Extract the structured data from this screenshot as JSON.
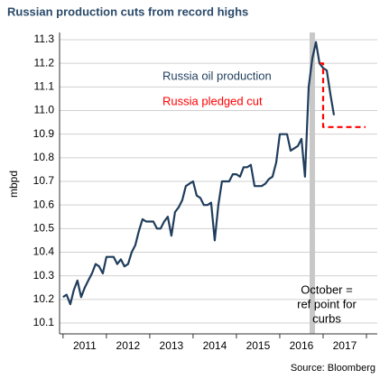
{
  "chart_data": {
    "type": "line",
    "title": "Russian production cuts from record highs",
    "ylabel": "mbpd",
    "source": "Source: Bloomberg",
    "xlim": [
      2010.92,
      2018.25
    ],
    "xticks": [
      2011,
      2012,
      2013,
      2014,
      2015,
      2016,
      2017,
      2018
    ],
    "xtick_labels": [
      "2011",
      "2012",
      "2013",
      "2014",
      "2015",
      "2016",
      "2017"
    ],
    "ylim": [
      10.1,
      11.3
    ],
    "yticks": [
      10.1,
      10.2,
      10.3,
      10.4,
      10.5,
      10.6,
      10.7,
      10.8,
      10.9,
      {
        "value": 11,
        "label": "11.0"
      },
      11.1,
      11.2,
      11.3
    ],
    "grid": true,
    "highlight": {
      "x": 2016.75,
      "color": "#c8c8c8",
      "label": [
        "October =",
        "ref point for",
        "curbs"
      ]
    },
    "series": [
      {
        "name": "Russia oil production",
        "color": "#1f3d5c",
        "dash": false,
        "x": [
          2011.0,
          2011.083,
          2011.167,
          2011.25,
          2011.333,
          2011.417,
          2011.5,
          2011.583,
          2011.667,
          2011.75,
          2011.833,
          2011.917,
          2012.0,
          2012.083,
          2012.167,
          2012.25,
          2012.333,
          2012.417,
          2012.5,
          2012.583,
          2012.667,
          2012.75,
          2012.833,
          2012.917,
          2013.0,
          2013.083,
          2013.167,
          2013.25,
          2013.333,
          2013.417,
          2013.5,
          2013.583,
          2013.667,
          2013.75,
          2013.833,
          2013.917,
          2014.0,
          2014.083,
          2014.167,
          2014.25,
          2014.333,
          2014.417,
          2014.5,
          2014.583,
          2014.667,
          2014.75,
          2014.833,
          2014.917,
          2015.0,
          2015.083,
          2015.167,
          2015.25,
          2015.333,
          2015.417,
          2015.5,
          2015.583,
          2015.667,
          2015.75,
          2015.833,
          2015.917,
          2016.0,
          2016.083,
          2016.167,
          2016.25,
          2016.333,
          2016.417,
          2016.5,
          2016.583,
          2016.667,
          2016.75,
          2016.833,
          2016.917,
          2017.0,
          2017.083,
          2017.167,
          2017.25
        ],
        "values": [
          10.21,
          10.22,
          10.18,
          10.24,
          10.28,
          10.21,
          10.25,
          10.28,
          10.31,
          10.35,
          10.34,
          10.31,
          10.38,
          10.38,
          10.38,
          10.35,
          10.37,
          10.34,
          10.35,
          10.4,
          10.43,
          10.49,
          10.54,
          10.53,
          10.53,
          10.53,
          10.5,
          10.5,
          10.53,
          10.55,
          10.47,
          10.57,
          10.59,
          10.62,
          10.68,
          10.69,
          10.7,
          10.64,
          10.63,
          10.6,
          10.6,
          10.61,
          10.45,
          10.6,
          10.7,
          10.7,
          10.7,
          10.73,
          10.73,
          10.72,
          10.76,
          10.76,
          10.77,
          10.68,
          10.68,
          10.68,
          10.69,
          10.71,
          10.72,
          10.78,
          10.9,
          10.9,
          10.9,
          10.83,
          10.84,
          10.85,
          10.88,
          10.72,
          11.1,
          11.22,
          11.29,
          11.2,
          11.18,
          11.17,
          11.07,
          10.98
        ]
      },
      {
        "name": "Russia pledged cut",
        "color": "#ff0000",
        "dash": true,
        "x": [
          2016.92,
          2017.0,
          2017.0,
          2017.98
        ],
        "values": [
          11.2,
          11.2,
          10.93,
          10.93
        ]
      }
    ]
  }
}
